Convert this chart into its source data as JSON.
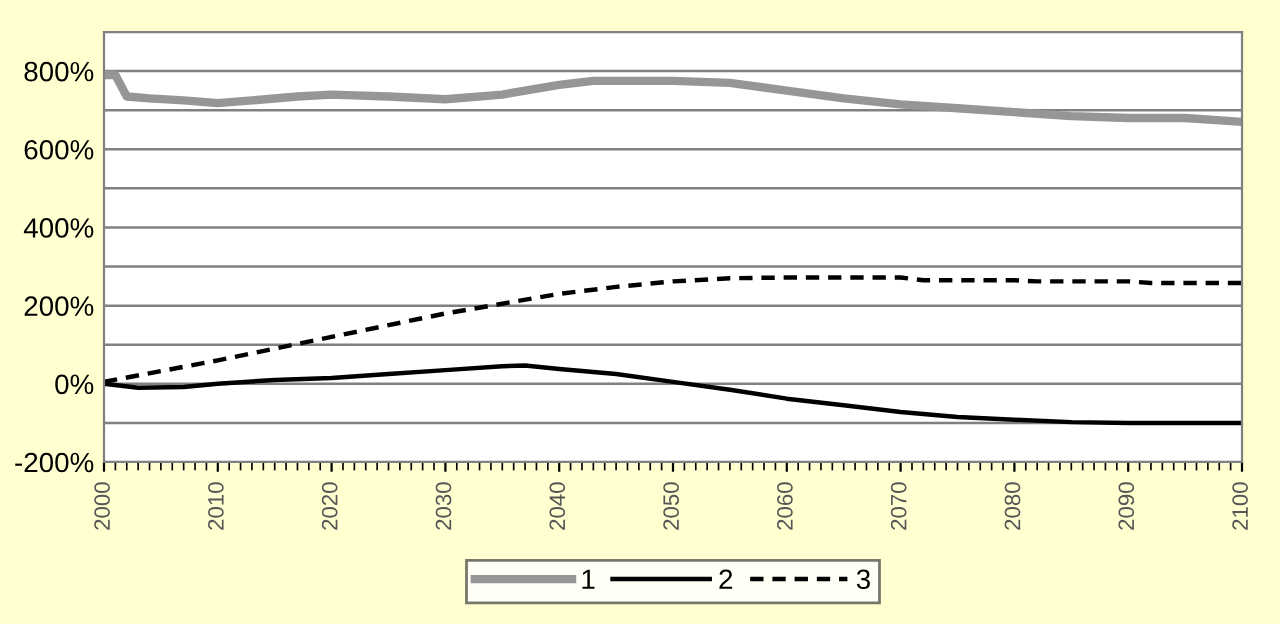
{
  "chart_data": {
    "type": "line",
    "xlim": [
      2000,
      2100
    ],
    "xticks": [
      2000,
      2010,
      2020,
      2030,
      2040,
      2050,
      2060,
      2070,
      2080,
      2090,
      2100
    ],
    "ylim": [
      -200,
      900
    ],
    "yticks": [
      {
        "value": -200,
        "label": "-200%"
      },
      {
        "value": -100,
        "label": null
      },
      {
        "value": 0,
        "label": "0%"
      },
      {
        "value": 100,
        "label": null
      },
      {
        "value": 200,
        "label": "200%"
      },
      {
        "value": 300,
        "label": null
      },
      {
        "value": 400,
        "label": "400%"
      },
      {
        "value": 500,
        "label": null
      },
      {
        "value": 600,
        "label": "600%"
      },
      {
        "value": 700,
        "label": null
      },
      {
        "value": 800,
        "label": "800%"
      },
      {
        "value": 900,
        "label": null
      }
    ],
    "grid": "y",
    "legend": "bottom",
    "marker": "none",
    "series": [
      {
        "name": "1",
        "color": "#969696",
        "line_style": "solid",
        "x": [
          2000,
          2001,
          2002,
          2004,
          2007,
          2010,
          2013,
          2017,
          2020,
          2025,
          2030,
          2035,
          2040,
          2043,
          2050,
          2055,
          2060,
          2065,
          2070,
          2075,
          2080,
          2085,
          2090,
          2095,
          2100
        ],
        "values": [
          790,
          790,
          735,
          730,
          725,
          718,
          725,
          735,
          740,
          735,
          728,
          740,
          765,
          775,
          775,
          770,
          750,
          730,
          715,
          705,
          695,
          685,
          680,
          680,
          670
        ]
      },
      {
        "name": "2",
        "color": "#000000",
        "line_style": "solid",
        "x": [
          2000,
          2003,
          2007,
          2010,
          2015,
          2020,
          2025,
          2030,
          2035,
          2037,
          2040,
          2045,
          2050,
          2055,
          2060,
          2065,
          2070,
          2075,
          2080,
          2085,
          2090,
          2100
        ],
        "values": [
          0,
          -10,
          -8,
          0,
          10,
          15,
          25,
          35,
          45,
          47,
          38,
          25,
          5,
          -15,
          -38,
          -55,
          -72,
          -85,
          -92,
          -98,
          -100,
          -100
        ]
      },
      {
        "name": "3",
        "color": "#000000",
        "line_style": "dashed",
        "x": [
          2000,
          2010,
          2020,
          2030,
          2040,
          2045,
          2050,
          2055,
          2060,
          2070,
          2072,
          2080,
          2082,
          2090,
          2092,
          2100
        ],
        "values": [
          5,
          60,
          120,
          180,
          230,
          248,
          262,
          270,
          272,
          272,
          265,
          265,
          262,
          262,
          258,
          258
        ]
      }
    ]
  }
}
